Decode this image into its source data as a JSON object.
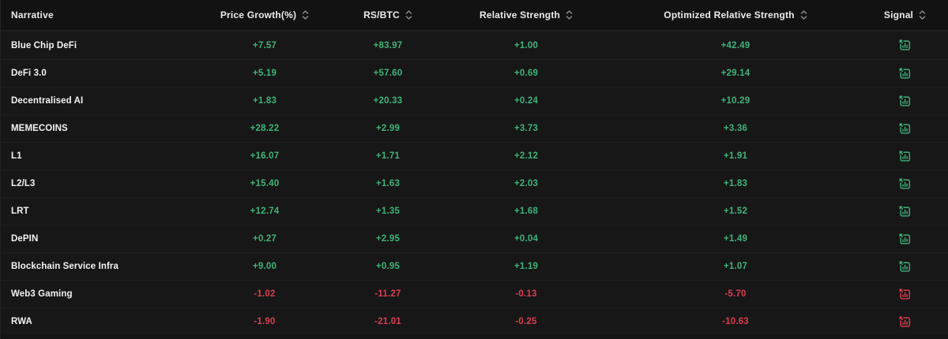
{
  "colors": {
    "positive": "#3fb37a",
    "negative": "#dd3d51",
    "header_text": "#ececec",
    "sort_icon": "#8e8e8e",
    "row_background": "#171717",
    "header_background": "#121212"
  },
  "table": {
    "columns": [
      {
        "id": "narrative",
        "label": "Narrative",
        "sortable": false
      },
      {
        "id": "price_growth",
        "label": "Price Growth(%)",
        "sortable": true
      },
      {
        "id": "rs_btc",
        "label": "RS/BTC",
        "sortable": true
      },
      {
        "id": "relative_strength",
        "label": "Relative Strength",
        "sortable": true
      },
      {
        "id": "optimized_relative_strength",
        "label": "Optimized Relative Strength",
        "sortable": true
      },
      {
        "id": "signal",
        "label": "Signal",
        "sortable": true
      }
    ],
    "rows": [
      {
        "narrative": "Blue Chip DeFi",
        "price_growth": "+7.57",
        "rs_btc": "+83.97",
        "relative_strength": "+1.00",
        "optimized_relative_strength": "+42.49",
        "signal": "bullish"
      },
      {
        "narrative": "DeFi 3.0",
        "price_growth": "+5.19",
        "rs_btc": "+57.60",
        "relative_strength": "+0.69",
        "optimized_relative_strength": "+29.14",
        "signal": "bullish"
      },
      {
        "narrative": "Decentralised AI",
        "price_growth": "+1.83",
        "rs_btc": "+20.33",
        "relative_strength": "+0.24",
        "optimized_relative_strength": "+10.29",
        "signal": "bullish"
      },
      {
        "narrative": "MEMECOINS",
        "price_growth": "+28.22",
        "rs_btc": "+2.99",
        "relative_strength": "+3.73",
        "optimized_relative_strength": "+3.36",
        "signal": "bullish"
      },
      {
        "narrative": "L1",
        "price_growth": "+16.07",
        "rs_btc": "+1.71",
        "relative_strength": "+2.12",
        "optimized_relative_strength": "+1.91",
        "signal": "bullish"
      },
      {
        "narrative": "L2/L3",
        "price_growth": "+15.40",
        "rs_btc": "+1.63",
        "relative_strength": "+2.03",
        "optimized_relative_strength": "+1.83",
        "signal": "bullish"
      },
      {
        "narrative": "LRT",
        "price_growth": "+12.74",
        "rs_btc": "+1.35",
        "relative_strength": "+1.68",
        "optimized_relative_strength": "+1.52",
        "signal": "bullish"
      },
      {
        "narrative": "DePIN",
        "price_growth": "+0.27",
        "rs_btc": "+2.95",
        "relative_strength": "+0.04",
        "optimized_relative_strength": "+1.49",
        "signal": "bullish"
      },
      {
        "narrative": "Blockchain Service Infra",
        "price_growth": "+9.00",
        "rs_btc": "+0.95",
        "relative_strength": "+1.19",
        "optimized_relative_strength": "+1.07",
        "signal": "bullish"
      },
      {
        "narrative": "Web3 Gaming",
        "price_growth": "-1.02",
        "rs_btc": "-11.27",
        "relative_strength": "-0.13",
        "optimized_relative_strength": "-5.70",
        "signal": "bearish"
      },
      {
        "narrative": "RWA",
        "price_growth": "-1.90",
        "rs_btc": "-21.01",
        "relative_strength": "-0.25",
        "optimized_relative_strength": "-10.63",
        "signal": "bearish"
      }
    ]
  }
}
